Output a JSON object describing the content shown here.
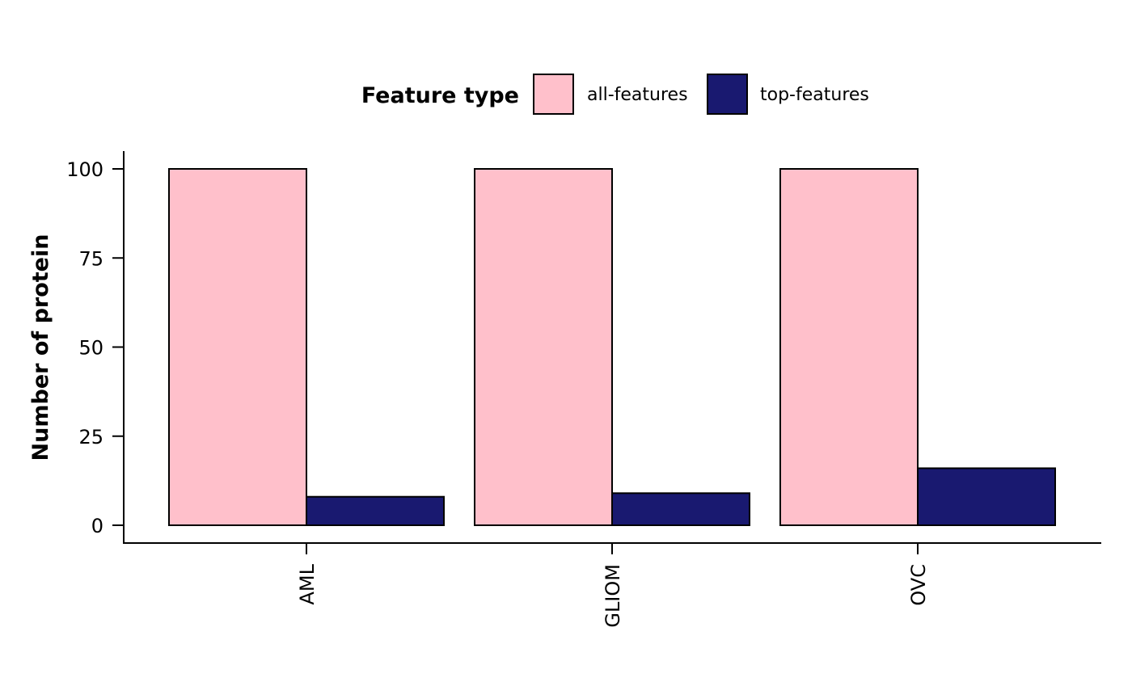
{
  "chart_data": {
    "type": "bar",
    "categories": [
      "AML",
      "GLIOM",
      "OVC"
    ],
    "series": [
      {
        "name": "all-features",
        "values": [
          100,
          100,
          100
        ],
        "color": "#FFC0CB"
      },
      {
        "name": "top-features",
        "values": [
          8,
          9,
          16
        ],
        "color": "#191970"
      }
    ],
    "ylabel": "Number of protein",
    "xlabel": "",
    "ylim": [
      0,
      100
    ],
    "yticks": [
      0,
      25,
      50,
      75,
      100
    ],
    "legend": {
      "title": "Feature type",
      "position": "top"
    },
    "grid": false
  }
}
